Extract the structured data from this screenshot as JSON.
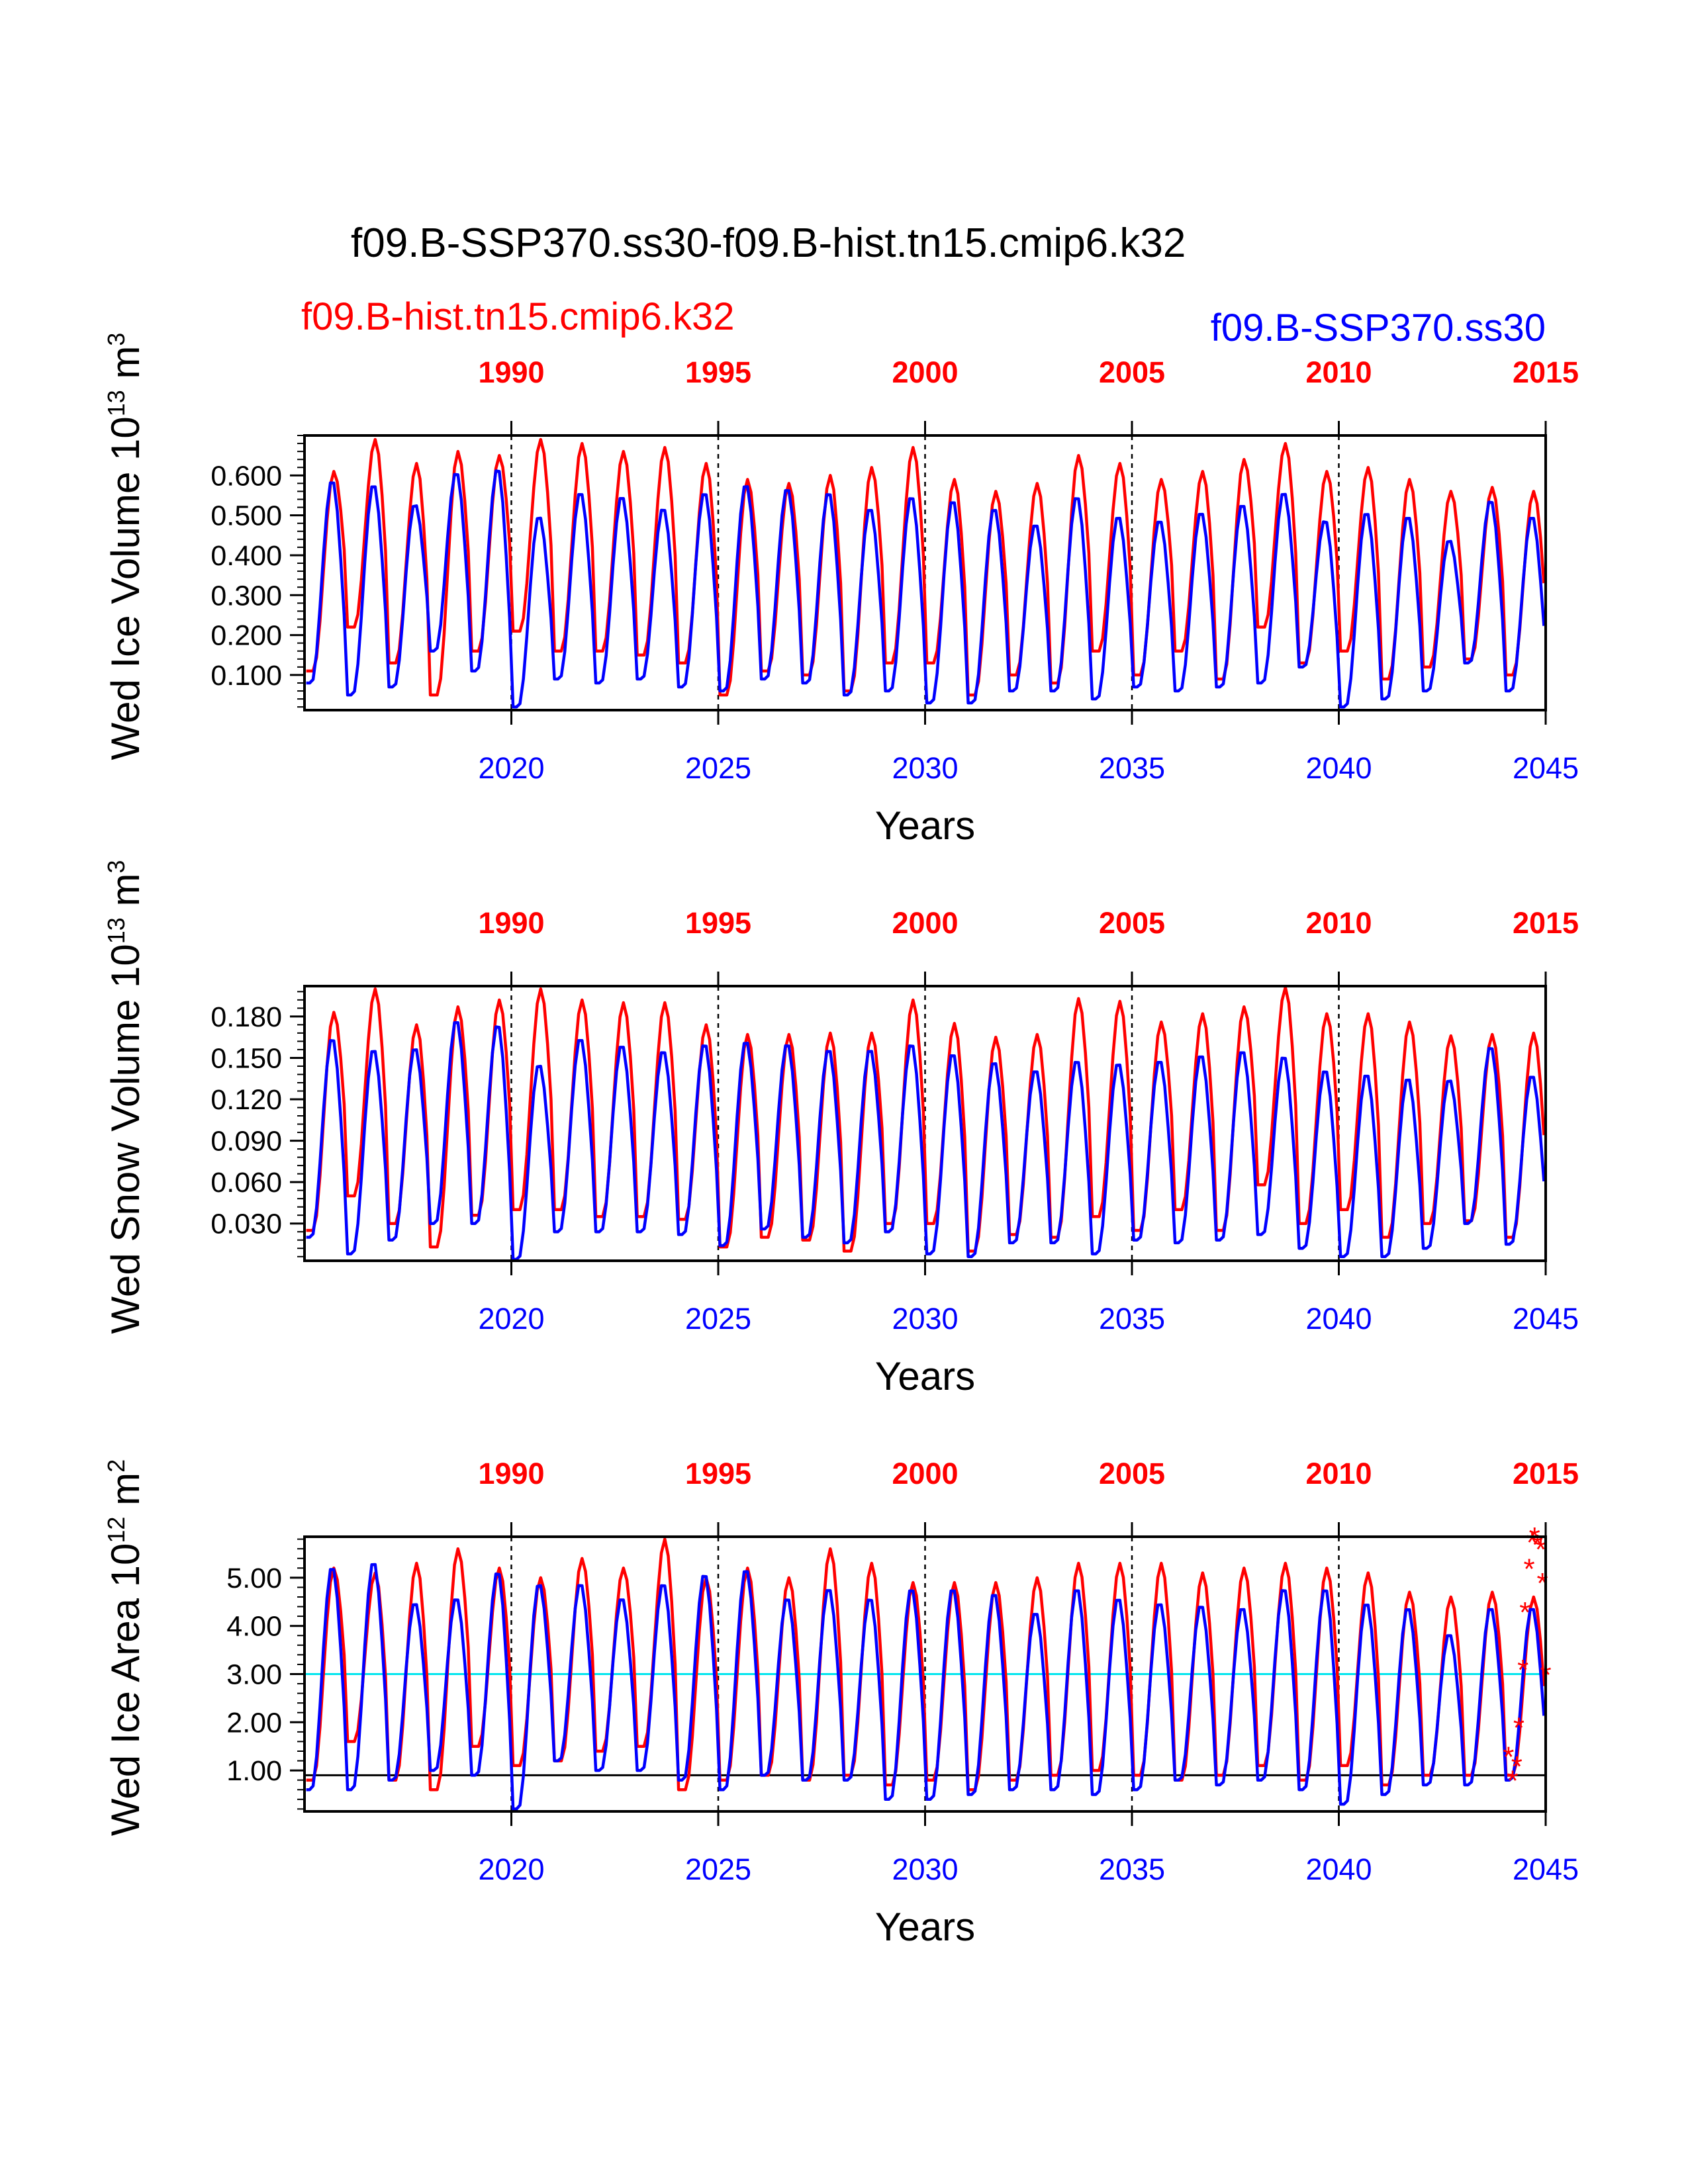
{
  "title": "f09.B-SSP370.ss30-f09.B-hist.tn15.cmip6.k32",
  "legend": {
    "red_label": "f09.B-hist.tn15.cmip6.k32",
    "blue_label": "f09.B-SSP370.ss30"
  },
  "colors": {
    "hist": "#ff0000",
    "ssp": "#0000ff",
    "reference_line": "#00e5ee",
    "zero_line": "#000000"
  },
  "chart_data": [
    {
      "type": "line",
      "id": "ice-volume",
      "ylabel": {
        "main": "Wed Ice Volume 10",
        "exp": "13",
        "unit": " m",
        "unit_exp": "3"
      },
      "xlabel": "Years",
      "xlim_bottom": [
        2015,
        2045
      ],
      "xlim_top": [
        1985,
        2015
      ],
      "top_ticks": [
        "1990",
        "1995",
        "2000",
        "2005",
        "2010",
        "2015"
      ],
      "bottom_ticks": [
        "2020",
        "2025",
        "2030",
        "2035",
        "2040",
        "2045"
      ],
      "ylim": [
        0.012,
        0.7
      ],
      "yticks": [
        0.1,
        0.2,
        0.3,
        0.4,
        0.5,
        0.6
      ],
      "ytick_labels": [
        "0.100",
        "0.200",
        "0.300",
        "0.400",
        "0.500",
        "0.600"
      ],
      "minor_step": 0.02,
      "series": [
        {
          "name": "f09.B-hist.tn15.cmip6.k32",
          "color": "#ff0000",
          "max": [
            0.61,
            0.69,
            0.63,
            0.66,
            0.65,
            0.69,
            0.68,
            0.66,
            0.67,
            0.63,
            0.59,
            0.58,
            0.6,
            0.62,
            0.67,
            0.59,
            0.56,
            0.58,
            0.65,
            0.63,
            0.59,
            0.61,
            0.64,
            0.68,
            0.61,
            0.62,
            0.59,
            0.56,
            0.57,
            0.56
          ],
          "min": [
            0.11,
            0.22,
            0.13,
            0.05,
            0.16,
            0.21,
            0.16,
            0.16,
            0.15,
            0.13,
            0.05,
            0.11,
            0.1,
            0.06,
            0.13,
            0.13,
            0.05,
            0.1,
            0.08,
            0.16,
            0.1,
            0.16,
            0.09,
            0.22,
            0.13,
            0.16,
            0.09,
            0.12,
            0.14,
            0.1
          ]
        },
        {
          "name": "f09.B-SSP370.ss30",
          "color": "#0000ff",
          "max": [
            0.59,
            0.58,
            0.53,
            0.61,
            0.62,
            0.5,
            0.56,
            0.55,
            0.52,
            0.56,
            0.58,
            0.57,
            0.56,
            0.52,
            0.55,
            0.54,
            0.52,
            0.48,
            0.55,
            0.5,
            0.49,
            0.51,
            0.53,
            0.56,
            0.49,
            0.51,
            0.5,
            0.44,
            0.54,
            0.5
          ],
          "min": [
            0.08,
            0.05,
            0.07,
            0.16,
            0.11,
            0.02,
            0.09,
            0.08,
            0.09,
            0.07,
            0.06,
            0.09,
            0.08,
            0.05,
            0.06,
            0.03,
            0.03,
            0.06,
            0.06,
            0.04,
            0.07,
            0.06,
            0.07,
            0.08,
            0.12,
            0.02,
            0.04,
            0.06,
            0.13,
            0.06
          ]
        }
      ]
    },
    {
      "type": "line",
      "id": "snow-volume",
      "ylabel": {
        "main": "Wed Snow Volume 10",
        "exp": "13",
        "unit": " m",
        "unit_exp": "3"
      },
      "xlabel": "Years",
      "xlim_bottom": [
        2015,
        2045
      ],
      "xlim_top": [
        1985,
        2015
      ],
      "top_ticks": [
        "1990",
        "1995",
        "2000",
        "2005",
        "2010",
        "2015"
      ],
      "bottom_ticks": [
        "2020",
        "2025",
        "2030",
        "2035",
        "2040",
        "2045"
      ],
      "ylim": [
        0.003,
        0.202
      ],
      "yticks": [
        0.03,
        0.06,
        0.09,
        0.12,
        0.15,
        0.18
      ],
      "ytick_labels": [
        "0.030",
        "0.060",
        "0.090",
        "0.120",
        "0.150",
        "0.180"
      ],
      "minor_step": 0.006,
      "series": [
        {
          "name": "f09.B-hist.tn15.cmip6.k32",
          "color": "#ff0000",
          "max": [
            0.183,
            0.2,
            0.174,
            0.187,
            0.192,
            0.2,
            0.192,
            0.19,
            0.19,
            0.174,
            0.167,
            0.167,
            0.168,
            0.168,
            0.192,
            0.175,
            0.165,
            0.167,
            0.193,
            0.191,
            0.176,
            0.182,
            0.187,
            0.201,
            0.182,
            0.182,
            0.176,
            0.166,
            0.167,
            0.168
          ],
          "min": [
            0.025,
            0.05,
            0.03,
            0.013,
            0.036,
            0.04,
            0.04,
            0.035,
            0.035,
            0.033,
            0.013,
            0.02,
            0.018,
            0.01,
            0.03,
            0.03,
            0.01,
            0.022,
            0.02,
            0.035,
            0.025,
            0.04,
            0.025,
            0.058,
            0.03,
            0.04,
            0.02,
            0.03,
            0.032,
            0.02
          ]
        },
        {
          "name": "f09.B-SSP370.ss30",
          "color": "#0000ff",
          "max": [
            0.165,
            0.157,
            0.158,
            0.178,
            0.175,
            0.146,
            0.165,
            0.16,
            0.156,
            0.161,
            0.163,
            0.161,
            0.157,
            0.157,
            0.161,
            0.154,
            0.148,
            0.142,
            0.149,
            0.147,
            0.149,
            0.153,
            0.156,
            0.152,
            0.142,
            0.139,
            0.136,
            0.135,
            0.159,
            0.138
          ],
          "min": [
            0.02,
            0.008,
            0.018,
            0.03,
            0.03,
            0.004,
            0.024,
            0.024,
            0.024,
            0.022,
            0.014,
            0.026,
            0.02,
            0.016,
            0.024,
            0.008,
            0.006,
            0.016,
            0.016,
            0.008,
            0.018,
            0.016,
            0.018,
            0.022,
            0.012,
            0.006,
            0.006,
            0.012,
            0.03,
            0.015
          ]
        }
      ]
    },
    {
      "type": "line",
      "id": "ice-area",
      "ylabel": {
        "main": "Wed Ice Area 10",
        "exp": "12",
        "unit": " m",
        "unit_exp": "2"
      },
      "xlabel": "Years",
      "xlim_bottom": [
        2015,
        2045
      ],
      "xlim_top": [
        1985,
        2015
      ],
      "top_ticks": [
        "1990",
        "1995",
        "2000",
        "2005",
        "2010",
        "2015"
      ],
      "bottom_ticks": [
        "2020",
        "2025",
        "2030",
        "2035",
        "2040",
        "2045"
      ],
      "ylim": [
        0.15,
        5.85
      ],
      "yticks": [
        1.0,
        2.0,
        3.0,
        4.0,
        5.0
      ],
      "ytick_labels": [
        "1.00",
        "2.00",
        "3.00",
        "4.00",
        "5.00"
      ],
      "minor_step": 0.2,
      "reference_lines": [
        {
          "y": 3.0,
          "color": "#00e5ee"
        },
        {
          "y": 0.9,
          "color": "#000000"
        }
      ],
      "series": [
        {
          "name": "f09.B-hist.tn15.cmip6.k32",
          "color": "#ff0000",
          "max": [
            5.2,
            5.1,
            5.3,
            5.6,
            5.2,
            5.0,
            5.4,
            5.2,
            5.8,
            5.0,
            5.2,
            5.0,
            5.6,
            5.3,
            4.9,
            4.9,
            4.9,
            5.0,
            5.3,
            5.3,
            5.3,
            5.1,
            5.2,
            5.3,
            5.2,
            5.1,
            4.7,
            4.6,
            4.7,
            4.6
          ],
          "min": [
            0.8,
            1.6,
            0.8,
            0.6,
            1.5,
            1.1,
            1.2,
            1.4,
            1.5,
            0.6,
            0.8,
            0.9,
            0.8,
            0.9,
            0.7,
            0.8,
            0.6,
            0.8,
            0.9,
            1.0,
            0.9,
            0.8,
            0.9,
            1.1,
            0.8,
            1.1,
            0.7,
            0.9,
            0.9,
            0.9
          ]
        },
        {
          "name": "f09.B-SSP370.ss30",
          "color": "#0000ff",
          "max": [
            5.25,
            5.35,
            4.5,
            4.6,
            5.15,
            4.9,
            4.9,
            4.6,
            4.9,
            5.1,
            5.2,
            4.6,
            4.8,
            4.6,
            4.8,
            4.8,
            4.7,
            4.3,
            4.8,
            4.6,
            4.5,
            4.45,
            4.4,
            4.8,
            4.8,
            4.5,
            4.4,
            3.85,
            4.4,
            4.4
          ],
          "min": [
            0.6,
            0.6,
            0.8,
            1.0,
            0.9,
            0.2,
            1.2,
            1.0,
            1.0,
            0.8,
            0.6,
            0.9,
            0.8,
            0.8,
            0.4,
            0.4,
            0.5,
            0.6,
            0.6,
            0.5,
            0.6,
            0.8,
            0.7,
            0.8,
            0.6,
            0.3,
            0.5,
            0.7,
            0.7,
            0.8
          ]
        }
      ],
      "markers": {
        "symbol": "*",
        "color": "#ff0000",
        "points": [
          {
            "x": 2044.1,
            "y": 1.3
          },
          {
            "x": 2044.2,
            "y": 0.8
          },
          {
            "x": 2044.3,
            "y": 1.1
          },
          {
            "x": 2044.35,
            "y": 1.9
          },
          {
            "x": 2044.45,
            "y": 3.1
          },
          {
            "x": 2044.5,
            "y": 4.3
          },
          {
            "x": 2044.6,
            "y": 5.2
          },
          {
            "x": 2044.67,
            "y": 5.75
          },
          {
            "x": 2044.73,
            "y": 5.85
          },
          {
            "x": 2044.8,
            "y": 5.7
          },
          {
            "x": 2044.88,
            "y": 5.6
          },
          {
            "x": 2044.92,
            "y": 4.9
          },
          {
            "x": 2045.0,
            "y": 3.0
          }
        ]
      }
    }
  ]
}
